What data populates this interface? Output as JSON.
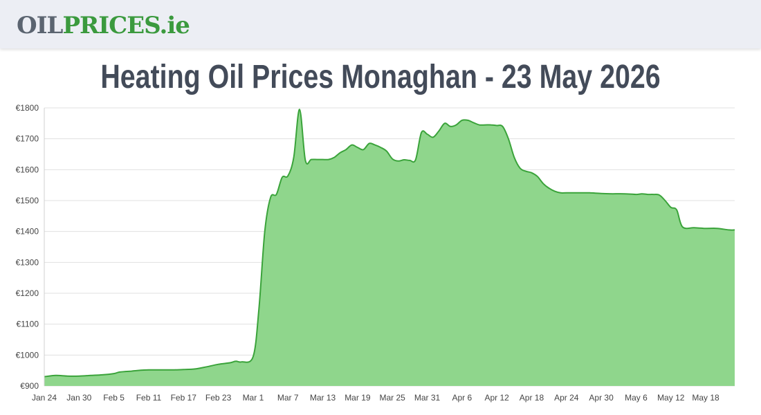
{
  "header": {
    "logo_part1": "OIL",
    "logo_part2": "PRICES.ie"
  },
  "page_title": "Heating Oil Prices Monaghan - 23 May 2026",
  "colors": {
    "line": "#3aa33a",
    "fill": "#8fd68c",
    "grid": "#e0e0e0",
    "header_bg": "#eceef4",
    "title": "#434b59"
  },
  "chart_data": {
    "type": "area",
    "title": "Heating Oil Prices Monaghan - 23 May 2026",
    "xlabel": "",
    "ylabel": "",
    "ylim": [
      900,
      1800
    ],
    "yticks": [
      900,
      1000,
      1100,
      1200,
      1300,
      1400,
      1500,
      1600,
      1700,
      1800
    ],
    "ytick_labels": [
      "€900",
      "€1000",
      "€1100",
      "€1200",
      "€1300",
      "€1400",
      "€1500",
      "€1600",
      "€1700",
      "€1800"
    ],
    "xlim": [
      "2026-01-24",
      "2026-05-23"
    ],
    "xtick_labels": [
      "Jan 24",
      "Jan 30",
      "Feb 5",
      "Feb 11",
      "Feb 17",
      "Feb 23",
      "Mar 1",
      "Mar 7",
      "Mar 13",
      "Mar 19",
      "Mar 25",
      "Mar 31",
      "Apr 6",
      "Apr 12",
      "Apr 18",
      "Apr 24",
      "Apr 30",
      "May 6",
      "May 12",
      "May 18"
    ],
    "xtick_dates": [
      "2026-01-24",
      "2026-01-30",
      "2026-02-05",
      "2026-02-11",
      "2026-02-17",
      "2026-02-23",
      "2026-03-01",
      "2026-03-07",
      "2026-03-13",
      "2026-03-19",
      "2026-03-25",
      "2026-03-31",
      "2026-04-06",
      "2026-04-12",
      "2026-04-18",
      "2026-04-24",
      "2026-04-30",
      "2026-05-06",
      "2026-05-12",
      "2026-05-18"
    ],
    "grid": true,
    "legend": "none",
    "series": [
      {
        "x": [
          "2026-01-24",
          "2026-01-26",
          "2026-01-28",
          "2026-01-30",
          "2026-02-01",
          "2026-02-03",
          "2026-02-05",
          "2026-02-06",
          "2026-02-08",
          "2026-02-09",
          "2026-02-11",
          "2026-02-13",
          "2026-02-15",
          "2026-02-17",
          "2026-02-19",
          "2026-02-21",
          "2026-02-23",
          "2026-02-25",
          "2026-02-26",
          "2026-02-27",
          "2026-03-01",
          "2026-03-02",
          "2026-03-03",
          "2026-03-04",
          "2026-03-05",
          "2026-03-06",
          "2026-03-07",
          "2026-03-08",
          "2026-03-09",
          "2026-03-10",
          "2026-03-11",
          "2026-03-12",
          "2026-03-13",
          "2026-03-14",
          "2026-03-15",
          "2026-03-16",
          "2026-03-17",
          "2026-03-18",
          "2026-03-19",
          "2026-03-20",
          "2026-03-21",
          "2026-03-22",
          "2026-03-23",
          "2026-03-24",
          "2026-03-25",
          "2026-03-26",
          "2026-03-27",
          "2026-03-28",
          "2026-03-29",
          "2026-03-30",
          "2026-03-31",
          "2026-04-01",
          "2026-04-02",
          "2026-04-03",
          "2026-04-04",
          "2026-04-05",
          "2026-04-06",
          "2026-04-07",
          "2026-04-08",
          "2026-04-09",
          "2026-04-10",
          "2026-04-11",
          "2026-04-12",
          "2026-04-13",
          "2026-04-14",
          "2026-04-15",
          "2026-04-16",
          "2026-04-17",
          "2026-04-18",
          "2026-04-19",
          "2026-04-20",
          "2026-04-21",
          "2026-04-22",
          "2026-04-23",
          "2026-04-24",
          "2026-04-26",
          "2026-04-28",
          "2026-04-30",
          "2026-05-02",
          "2026-05-04",
          "2026-05-06",
          "2026-05-07",
          "2026-05-08",
          "2026-05-09",
          "2026-05-10",
          "2026-05-11",
          "2026-05-12",
          "2026-05-13",
          "2026-05-14",
          "2026-05-16",
          "2026-05-18",
          "2026-05-20",
          "2026-05-22",
          "2026-05-23"
        ],
        "y": [
          930,
          934,
          932,
          932,
          934,
          936,
          940,
          945,
          948,
          950,
          952,
          952,
          952,
          953,
          955,
          962,
          970,
          975,
          980,
          978,
          995,
          1150,
          1400,
          1510,
          1520,
          1575,
          1580,
          1640,
          1795,
          1630,
          1633,
          1633,
          1633,
          1633,
          1640,
          1655,
          1665,
          1680,
          1672,
          1665,
          1685,
          1680,
          1672,
          1660,
          1635,
          1628,
          1632,
          1630,
          1632,
          1720,
          1715,
          1705,
          1725,
          1750,
          1740,
          1745,
          1760,
          1760,
          1752,
          1745,
          1745,
          1745,
          1743,
          1740,
          1700,
          1640,
          1605,
          1595,
          1590,
          1578,
          1555,
          1540,
          1530,
          1525,
          1525,
          1525,
          1525,
          1523,
          1522,
          1522,
          1520,
          1522,
          1520,
          1520,
          1518,
          1500,
          1478,
          1470,
          1415,
          1412,
          1410,
          1410,
          1405,
          1405
        ]
      }
    ]
  }
}
